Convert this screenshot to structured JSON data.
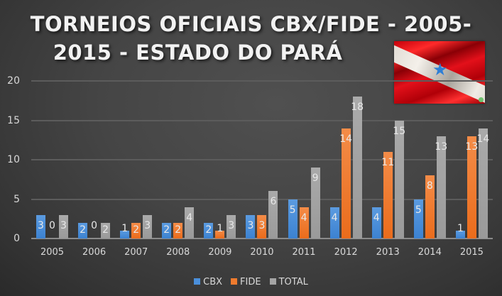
{
  "chart_data": {
    "type": "bar",
    "title": "TORNEIOS OFICIAIS CBX/FIDE - 2005-2015 - ESTADO DO PARÁ",
    "title_lines": [
      "TORNEIOS OFICIAIS CBX/FIDE - 2005-",
      "2015 - ESTADO DO PARÁ"
    ],
    "xlabel": "",
    "ylabel": "",
    "ylim": [
      0,
      20
    ],
    "yticks": [
      "0",
      "5",
      "10",
      "15",
      "20"
    ],
    "grid": true,
    "legend_position": "bottom",
    "categories": [
      "2005",
      "2006",
      "2007",
      "2008",
      "2009",
      "2010",
      "2011",
      "2012",
      "2013",
      "2014",
      "2015"
    ],
    "series": [
      {
        "name": "CBX",
        "color": "#4a8fdb",
        "values": [
          3,
          2,
          1,
          2,
          2,
          3,
          5,
          4,
          4,
          5,
          1
        ]
      },
      {
        "name": "FIDE",
        "color": "#ef7b2e",
        "values": [
          0,
          0,
          2,
          2,
          1,
          3,
          4,
          14,
          11,
          8,
          13
        ]
      },
      {
        "name": "TOTAL",
        "color": "#a5a5a5",
        "values": [
          3,
          2,
          3,
          4,
          3,
          6,
          9,
          18,
          15,
          13,
          14
        ]
      }
    ],
    "data_labels": true
  },
  "flag_image": {
    "icon": "para-state-flag",
    "star_color": "#2f7fd6"
  }
}
